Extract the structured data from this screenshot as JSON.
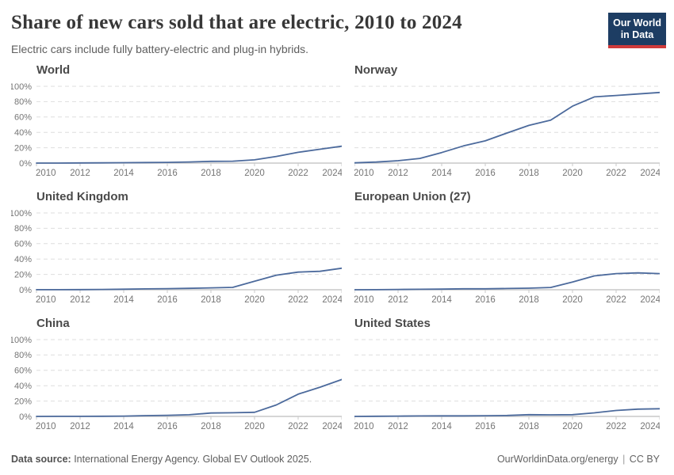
{
  "header": {
    "title": "Share of new cars sold that are electric, 2010 to 2024",
    "subtitle": "Electric cars include fully battery-electric and plug-in hybrids.",
    "logo": {
      "line1": "Our World",
      "line2": "in Data"
    }
  },
  "colors": {
    "line": "#4c6a9c",
    "grid": "#dedede",
    "axis": "#c9c9c9",
    "tick_label": "#757575",
    "logo_navy": "#1d3d63",
    "logo_red": "#cf3b3b"
  },
  "chart_data": [
    {
      "type": "line",
      "title": "World",
      "x": [
        2010,
        2011,
        2012,
        2013,
        2014,
        2015,
        2016,
        2017,
        2018,
        2019,
        2020,
        2021,
        2022,
        2023,
        2024
      ],
      "values": [
        0.01,
        0.05,
        0.2,
        0.3,
        0.5,
        0.7,
        0.9,
        1.4,
        2.3,
        2.5,
        4.2,
        8.7,
        14,
        18,
        22
      ],
      "ylim": [
        0,
        100
      ],
      "x_ticks": [
        2010,
        2012,
        2014,
        2016,
        2018,
        2020,
        2022,
        2024
      ],
      "y_ticks": [
        0,
        20,
        40,
        60,
        80,
        100
      ],
      "y_tick_suffix": "%",
      "y_axis_labels": true,
      "grid": true,
      "legend": "none"
    },
    {
      "type": "line",
      "title": "Norway",
      "x": [
        2010,
        2011,
        2012,
        2013,
        2014,
        2015,
        2016,
        2017,
        2018,
        2019,
        2020,
        2021,
        2022,
        2023,
        2024
      ],
      "values": [
        0.3,
        1.3,
        3.1,
        6.1,
        13.7,
        22.4,
        29,
        39.2,
        49.1,
        55.9,
        74.1,
        86.2,
        88,
        90,
        92
      ],
      "ylim": [
        0,
        100
      ],
      "x_ticks": [
        2010,
        2012,
        2014,
        2016,
        2018,
        2020,
        2022,
        2024
      ],
      "y_ticks": [
        0,
        20,
        40,
        60,
        80,
        100
      ],
      "y_tick_suffix": "%",
      "y_axis_labels": false,
      "grid": true,
      "legend": "none"
    },
    {
      "type": "line",
      "title": "United Kingdom",
      "x": [
        2010,
        2011,
        2012,
        2013,
        2014,
        2015,
        2016,
        2017,
        2018,
        2019,
        2020,
        2021,
        2022,
        2023,
        2024
      ],
      "values": [
        0.1,
        0.1,
        0.2,
        0.4,
        0.7,
        1.1,
        1.4,
        1.9,
        2.5,
        3.1,
        11,
        19,
        23,
        24,
        28
      ],
      "ylim": [
        0,
        100
      ],
      "x_ticks": [
        2010,
        2012,
        2014,
        2016,
        2018,
        2020,
        2022,
        2024
      ],
      "y_ticks": [
        0,
        20,
        40,
        60,
        80,
        100
      ],
      "y_tick_suffix": "%",
      "y_axis_labels": true,
      "grid": true,
      "legend": "none"
    },
    {
      "type": "line",
      "title": "European Union (27)",
      "x": [
        2010,
        2011,
        2012,
        2013,
        2014,
        2015,
        2016,
        2017,
        2018,
        2019,
        2020,
        2021,
        2022,
        2023,
        2024
      ],
      "values": [
        0.05,
        0.15,
        0.4,
        0.6,
        0.8,
        1.2,
        1.2,
        1.6,
        2.1,
        3,
        10,
        18,
        21,
        22,
        21
      ],
      "ylim": [
        0,
        100
      ],
      "x_ticks": [
        2010,
        2012,
        2014,
        2016,
        2018,
        2020,
        2022,
        2024
      ],
      "y_ticks": [
        0,
        20,
        40,
        60,
        80,
        100
      ],
      "y_tick_suffix": "%",
      "y_axis_labels": false,
      "grid": true,
      "legend": "none"
    },
    {
      "type": "line",
      "title": "China",
      "x": [
        2010,
        2011,
        2012,
        2013,
        2014,
        2015,
        2016,
        2017,
        2018,
        2019,
        2020,
        2021,
        2022,
        2023,
        2024
      ],
      "values": [
        0.05,
        0.1,
        0.1,
        0.2,
        0.4,
        1,
        1.4,
        2.2,
        4.4,
        4.7,
        5.4,
        15,
        29,
        38,
        48
      ],
      "ylim": [
        0,
        100
      ],
      "x_ticks": [
        2010,
        2012,
        2014,
        2016,
        2018,
        2020,
        2022,
        2024
      ],
      "y_ticks": [
        0,
        20,
        40,
        60,
        80,
        100
      ],
      "y_tick_suffix": "%",
      "y_axis_labels": true,
      "grid": true,
      "legend": "none"
    },
    {
      "type": "line",
      "title": "United States",
      "x": [
        2010,
        2011,
        2012,
        2013,
        2014,
        2015,
        2016,
        2017,
        2018,
        2019,
        2020,
        2021,
        2022,
        2023,
        2024
      ],
      "values": [
        0.01,
        0.2,
        0.4,
        0.6,
        0.7,
        0.7,
        0.9,
        1.2,
        2.3,
        2.1,
        2.3,
        4.6,
        7.7,
        9.5,
        10
      ],
      "ylim": [
        0,
        100
      ],
      "x_ticks": [
        2010,
        2012,
        2014,
        2016,
        2018,
        2020,
        2022,
        2024
      ],
      "y_ticks": [
        0,
        20,
        40,
        60,
        80,
        100
      ],
      "y_tick_suffix": "%",
      "y_axis_labels": false,
      "grid": true,
      "legend": "none"
    }
  ],
  "footer": {
    "source_label": "Data source:",
    "source_text": " International Energy Agency. Global EV Outlook 2025.",
    "link_text": "OurWorldinData.org/energy",
    "separator": "|",
    "license_text": "CC BY"
  }
}
